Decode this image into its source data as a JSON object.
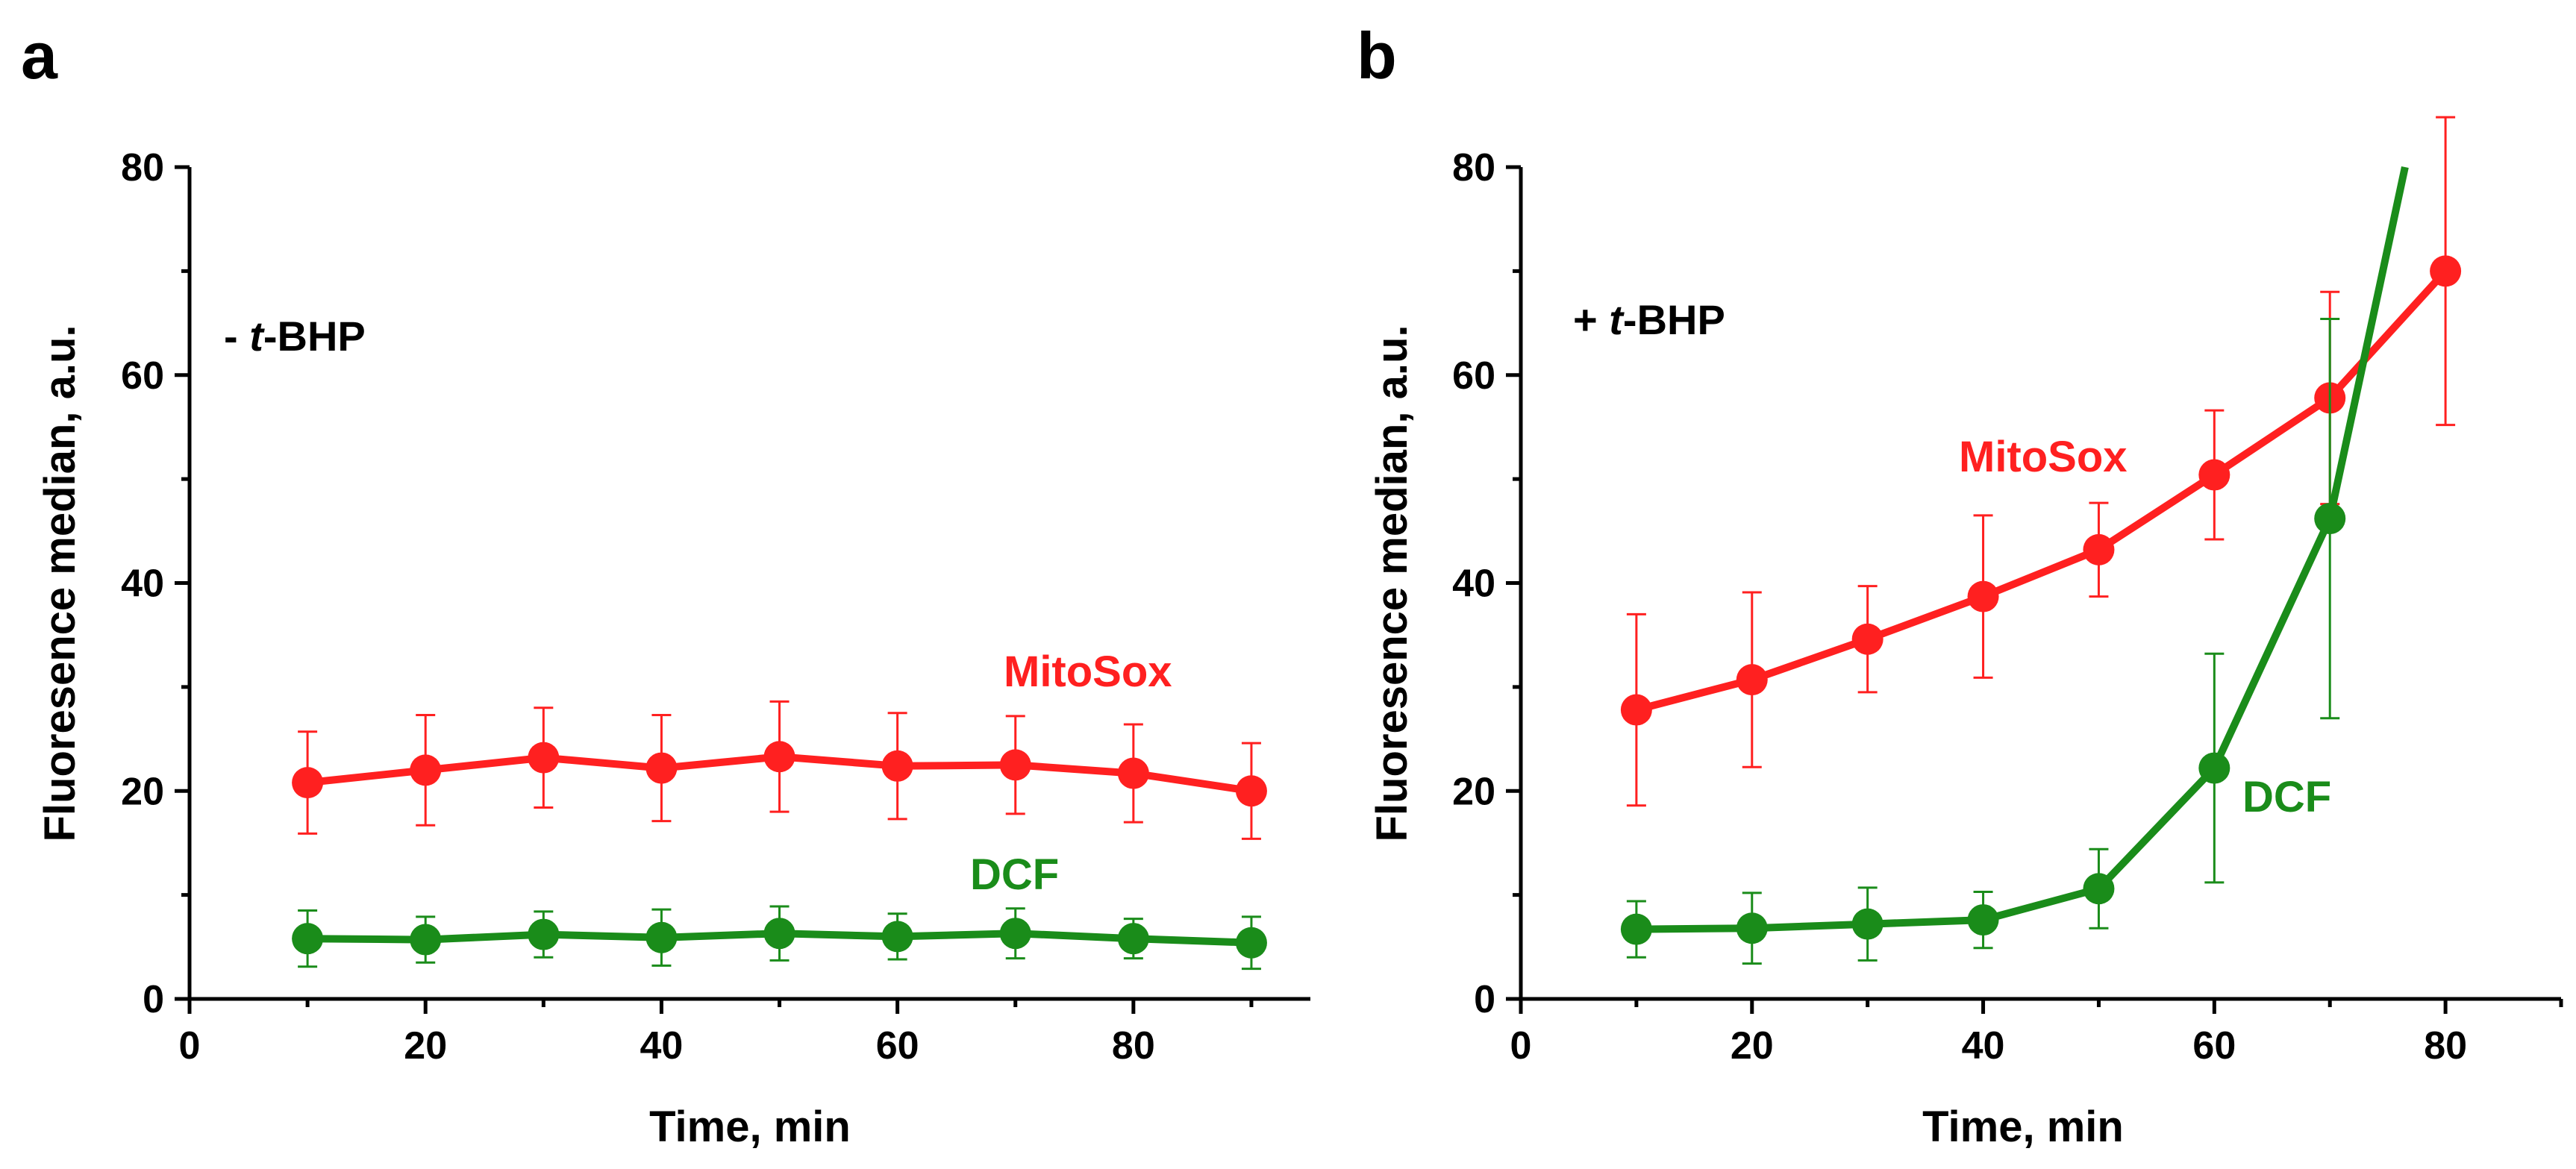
{
  "chart_data": [
    {
      "type": "line",
      "panel": "a",
      "annotation_prefix": "- ",
      "annotation_italic": "t",
      "annotation_suffix": "-BHP",
      "xlabel": "Time, min",
      "ylabel": "Fluoresence median, a.u.",
      "xlim": [
        0,
        95
      ],
      "ylim": [
        0,
        80
      ],
      "xticks": [
        0,
        20,
        40,
        60,
        80
      ],
      "yticks": [
        0,
        20,
        40,
        60,
        80
      ],
      "series": [
        {
          "name": "MitoSox",
          "color": "#ff2020",
          "x": [
            10,
            20,
            30,
            40,
            50,
            60,
            70,
            80,
            90
          ],
          "y": [
            20.8,
            22.0,
            23.2,
            22.2,
            23.3,
            22.4,
            22.5,
            21.7,
            20.0
          ],
          "err": [
            4.9,
            5.3,
            4.8,
            5.1,
            5.3,
            5.1,
            4.7,
            4.7,
            4.6
          ]
        },
        {
          "name": "DCF",
          "color": "#1a8c1a",
          "x": [
            10,
            20,
            30,
            40,
            50,
            60,
            70,
            80,
            90
          ],
          "y": [
            5.8,
            5.7,
            6.2,
            5.9,
            6.3,
            6.0,
            6.3,
            5.8,
            5.4
          ],
          "err": [
            2.7,
            2.2,
            2.2,
            2.7,
            2.6,
            2.2,
            2.4,
            1.9,
            2.5
          ]
        }
      ]
    },
    {
      "type": "line",
      "panel": "b",
      "annotation_prefix": "+ ",
      "annotation_italic": "t",
      "annotation_suffix": "-BHP",
      "xlabel": "Time, min",
      "ylabel": "Fluoresence median, a.u.",
      "xlim": [
        0,
        90
      ],
      "ylim": [
        0,
        80
      ],
      "xticks": [
        0,
        20,
        40,
        60,
        80
      ],
      "yticks": [
        0,
        20,
        40,
        60,
        80
      ],
      "series": [
        {
          "name": "MitoSox",
          "color": "#ff2020",
          "x": [
            10,
            20,
            30,
            40,
            50,
            60,
            70,
            80
          ],
          "y": [
            27.8,
            30.7,
            34.6,
            38.7,
            43.2,
            50.4,
            57.8,
            70.0
          ],
          "err": [
            9.2,
            8.4,
            5.1,
            7.8,
            4.5,
            6.2,
            10.2,
            14.8
          ]
        },
        {
          "name": "DCF",
          "color": "#1a8c1a",
          "x": [
            10,
            20,
            30,
            40,
            50,
            60,
            70,
            76.5
          ],
          "y": [
            6.7,
            6.8,
            7.2,
            7.6,
            10.6,
            22.2,
            46.2,
            80.0
          ],
          "err": [
            2.7,
            3.4,
            3.5,
            2.7,
            3.8,
            11.0,
            19.2,
            0
          ]
        }
      ]
    }
  ]
}
